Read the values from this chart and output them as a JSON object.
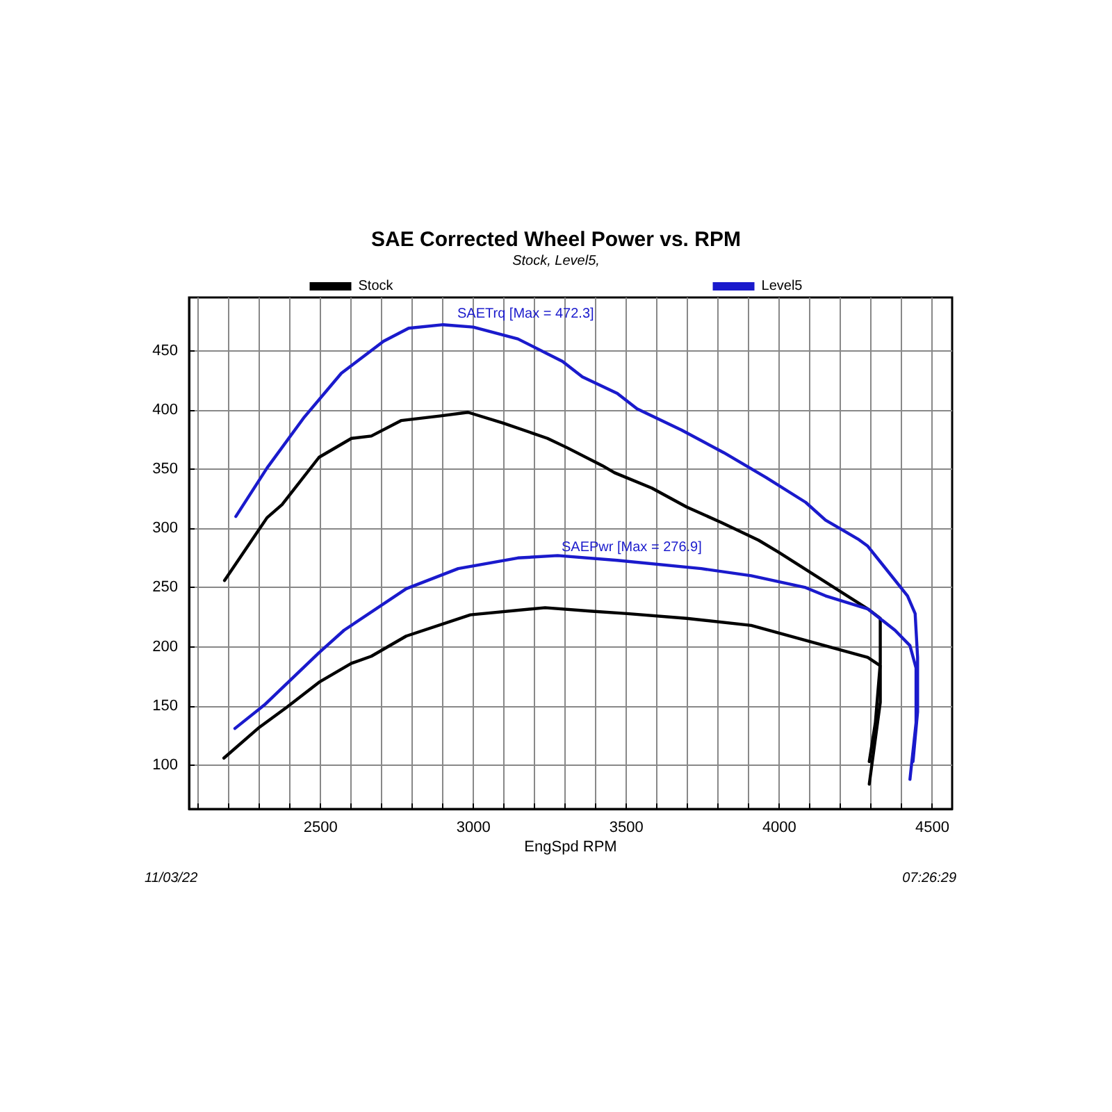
{
  "chart_data": {
    "type": "line",
    "title": "SAE Corrected Wheel Power vs. RPM",
    "subtitle": "Stock, Level5,",
    "xlabel": "EngSpd RPM",
    "xlim": [
      2070,
      4565
    ],
    "xticks": [
      {
        "value": 2100,
        "label": null
      },
      {
        "value": 2200,
        "label": null
      },
      {
        "value": 2300,
        "label": null
      },
      {
        "value": 2400,
        "label": null
      },
      2500,
      {
        "value": 2600,
        "label": null
      },
      {
        "value": 2700,
        "label": null
      },
      {
        "value": 2800,
        "label": null
      },
      {
        "value": 2900,
        "label": null
      },
      3000,
      {
        "value": 3100,
        "label": null
      },
      {
        "value": 3200,
        "label": null
      },
      {
        "value": 3300,
        "label": null
      },
      {
        "value": 3400,
        "label": null
      },
      3500,
      {
        "value": 3600,
        "label": null
      },
      {
        "value": 3700,
        "label": null
      },
      {
        "value": 3800,
        "label": null
      },
      {
        "value": 3900,
        "label": null
      },
      4000,
      {
        "value": 4100,
        "label": null
      },
      {
        "value": 4200,
        "label": null
      },
      {
        "value": 4300,
        "label": null
      },
      {
        "value": 4400,
        "label": null
      },
      4500
    ],
    "ylim": [
      63,
      495
    ],
    "yticks": [
      100,
      150,
      200,
      250,
      300,
      350,
      400,
      450
    ],
    "grid": true,
    "legend": "top",
    "marker": "none",
    "line_style": "solid",
    "series": [
      {
        "name": "Stock",
        "color": "#000000",
        "x": [
          2186,
          2325,
          2374,
          2495,
          2601,
          2666,
          2763,
          2893,
          2982,
          3096,
          3242,
          3307,
          3421,
          3461,
          3583,
          3697,
          3810,
          3932,
          3997,
          4289,
          4330,
          4330,
          4314,
          4294
        ],
        "values": [
          256,
          309,
          320,
          360,
          376,
          378,
          391,
          395,
          398,
          389,
          376,
          368,
          353,
          347,
          334,
          318,
          305,
          290,
          280,
          232,
          224,
          186,
          136,
          103
        ]
      },
      {
        "color": "#000000",
        "x": [
          2184,
          2300,
          2390,
          2495,
          2601,
          2666,
          2780,
          2990,
          3234,
          3388,
          3502,
          3697,
          3908,
          4119,
          4289,
          4330,
          4330,
          4294
        ],
        "values": [
          106,
          132,
          149,
          170,
          186,
          192,
          209,
          227,
          233,
          230,
          228,
          224,
          218,
          203,
          191,
          184,
          153,
          84
        ]
      },
      {
        "name": "Level5",
        "color": "#1a1acc",
        "x": [
          2223,
          2325,
          2447,
          2568,
          2706,
          2788,
          2901,
          2999,
          3145,
          3291,
          3356,
          3470,
          3535,
          3680,
          3818,
          3956,
          4086,
          4151,
          4257,
          4289,
          4419,
          4444,
          4452,
          4452,
          4437
        ],
        "values": [
          310,
          351,
          394,
          431,
          458,
          469,
          472,
          470,
          460,
          441,
          428,
          414,
          401,
          383,
          364,
          343,
          322,
          307,
          291,
          285,
          243,
          228,
          191,
          145,
          103
        ]
      },
      {
        "color": "#1a1acc",
        "x": [
          2220,
          2317,
          2495,
          2577,
          2780,
          2950,
          3145,
          3275,
          3470,
          3745,
          3908,
          4086,
          4151,
          4289,
          4378,
          4427,
          4447,
          4447,
          4427
        ],
        "values": [
          131,
          151,
          195,
          214,
          249,
          266,
          275,
          277,
          273,
          266,
          260,
          250,
          243,
          232,
          214,
          201,
          182,
          136,
          88
        ]
      }
    ],
    "annotations": [
      "SAETrq [Max = 472.3]",
      "SAEPwr [Max = 276.9]",
      "11/03/22",
      "07:26:29"
    ]
  }
}
